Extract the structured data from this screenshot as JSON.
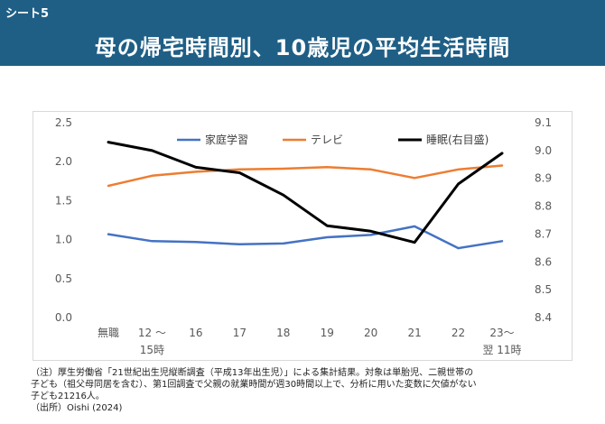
{
  "header": {
    "sheet_label": "シート5",
    "title": "母の帰宅時間別、10歳児の平均生活時間"
  },
  "chart_data": {
    "type": "line",
    "categories": [
      "無職",
      "12～\n15時",
      "16",
      "17",
      "18",
      "19",
      "20",
      "21",
      "22",
      "23～\n翌 11時"
    ],
    "category_labels": [
      {
        "line1": "無職",
        "line2": ""
      },
      {
        "line1": "12 ～",
        "line2": "15時"
      },
      {
        "line1": "16",
        "line2": ""
      },
      {
        "line1": "17",
        "line2": ""
      },
      {
        "line1": "18",
        "line2": ""
      },
      {
        "line1": "19",
        "line2": ""
      },
      {
        "line1": "20",
        "line2": ""
      },
      {
        "line1": "21",
        "line2": ""
      },
      {
        "line1": "22",
        "line2": ""
      },
      {
        "line1": "23～",
        "line2": "翌 11時"
      }
    ],
    "series": [
      {
        "name": "家庭学習",
        "axis": "left",
        "color": "#4472c4",
        "values": [
          1.07,
          0.98,
          0.97,
          0.94,
          0.95,
          1.03,
          1.06,
          1.17,
          0.89,
          0.98
        ]
      },
      {
        "name": "テレビ",
        "axis": "left",
        "color": "#ed7d31",
        "values": [
          1.69,
          1.82,
          1.87,
          1.9,
          1.91,
          1.93,
          1.9,
          1.79,
          1.9,
          1.95
        ]
      },
      {
        "name": "睡眠(右目盛)",
        "axis": "right",
        "color": "#000000",
        "values": [
          9.03,
          9.0,
          8.94,
          8.92,
          8.84,
          8.73,
          8.71,
          8.67,
          8.88,
          8.99
        ]
      }
    ],
    "y_left": {
      "min": 0.0,
      "max": 2.5,
      "ticks": [
        "0.0",
        "0.5",
        "1.0",
        "1.5",
        "2.0",
        "2.5"
      ]
    },
    "y_right": {
      "min": 8.4,
      "max": 9.1,
      "ticks": [
        "8.4",
        "8.5",
        "8.6",
        "8.7",
        "8.8",
        "8.9",
        "9.0",
        "9.1"
      ]
    },
    "grid": false,
    "legend_position": "top"
  },
  "notes": {
    "line1": "（注）厚生労働省「21世紀出生児縦断調査（平成13年出生児）」による集計結果。対象は単胎児、二親世帯の",
    "line2": "子ども（祖父母同居を含む）、第1回調査で父親の就業時間が週30時間以上で、分析に用いた変数に欠値がない",
    "line3": "子ども21216人。",
    "line4": "（出所）Oishi (2024)"
  }
}
